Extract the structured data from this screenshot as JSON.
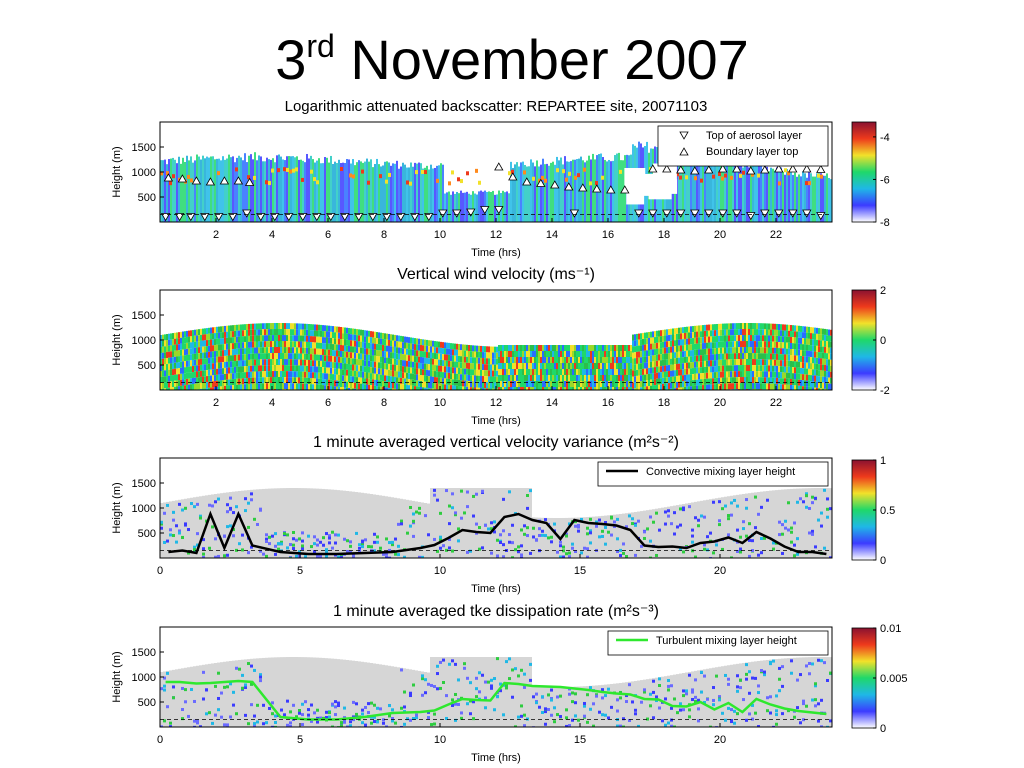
{
  "slide": {
    "title_number": "3",
    "title_suffix": "rd",
    "title_rest": "November 2007"
  },
  "chart_data": [
    {
      "type": "heatmap",
      "title": "Logarithmic attenuated backscatter: REPARTEE site, 20071103",
      "xlabel": "Time (hrs)",
      "ylabel": "Height (m)",
      "xlim": [
        0,
        24
      ],
      "ylim": [
        0,
        2000
      ],
      "x_ticks": [
        2,
        4,
        6,
        8,
        10,
        12,
        14,
        16,
        18,
        20,
        22
      ],
      "y_ticks": [
        500,
        1000,
        1500
      ],
      "colorbar": {
        "ticks": [
          -8,
          -6,
          -4
        ],
        "labels": [
          "-8",
          "-6",
          "-4"
        ],
        "range": [
          -8,
          -3.3
        ]
      },
      "legend": {
        "position": "top-right",
        "entries": [
          {
            "name": "Top of aerosol layer",
            "marker": "triangle-down"
          },
          {
            "name": "Boundary layer top",
            "marker": "triangle-up"
          }
        ]
      },
      "aerosol_layer_top": [
        {
          "x": 0.2,
          "y": 110
        },
        {
          "x": 0.7,
          "y": 110
        },
        {
          "x": 1.1,
          "y": 110
        },
        {
          "x": 1.6,
          "y": 110
        },
        {
          "x": 2.1,
          "y": 110
        },
        {
          "x": 2.6,
          "y": 110
        },
        {
          "x": 3.1,
          "y": 180
        },
        {
          "x": 3.6,
          "y": 110
        },
        {
          "x": 4.1,
          "y": 110
        },
        {
          "x": 4.6,
          "y": 110
        },
        {
          "x": 5.1,
          "y": 110
        },
        {
          "x": 5.6,
          "y": 110
        },
        {
          "x": 6.1,
          "y": 110
        },
        {
          "x": 6.6,
          "y": 110
        },
        {
          "x": 7.1,
          "y": 110
        },
        {
          "x": 7.6,
          "y": 110
        },
        {
          "x": 8.1,
          "y": 110
        },
        {
          "x": 8.6,
          "y": 110
        },
        {
          "x": 9.1,
          "y": 110
        },
        {
          "x": 9.6,
          "y": 110
        },
        {
          "x": 10.1,
          "y": 180
        },
        {
          "x": 10.6,
          "y": 180
        },
        {
          "x": 11.1,
          "y": 200
        },
        {
          "x": 11.6,
          "y": 250
        },
        {
          "x": 12.1,
          "y": 250
        },
        {
          "x": 14.8,
          "y": 180
        },
        {
          "x": 17.1,
          "y": 180
        },
        {
          "x": 17.6,
          "y": 180
        },
        {
          "x": 18.1,
          "y": 180
        },
        {
          "x": 18.6,
          "y": 180
        },
        {
          "x": 19.1,
          "y": 180
        },
        {
          "x": 19.6,
          "y": 180
        },
        {
          "x": 20.1,
          "y": 180
        },
        {
          "x": 20.6,
          "y": 180
        },
        {
          "x": 21.1,
          "y": 130
        },
        {
          "x": 21.6,
          "y": 180
        },
        {
          "x": 22.1,
          "y": 180
        },
        {
          "x": 22.6,
          "y": 180
        },
        {
          "x": 23.1,
          "y": 180
        },
        {
          "x": 23.6,
          "y": 130
        }
      ],
      "boundary_layer_top": [
        {
          "x": 0.3,
          "y": 880
        },
        {
          "x": 0.8,
          "y": 860
        },
        {
          "x": 1.3,
          "y": 820
        },
        {
          "x": 1.8,
          "y": 800
        },
        {
          "x": 2.3,
          "y": 820
        },
        {
          "x": 2.8,
          "y": 820
        },
        {
          "x": 3.2,
          "y": 790
        },
        {
          "x": 12.1,
          "y": 1100
        },
        {
          "x": 12.6,
          "y": 900
        },
        {
          "x": 13.1,
          "y": 800
        },
        {
          "x": 13.6,
          "y": 770
        },
        {
          "x": 14.1,
          "y": 740
        },
        {
          "x": 14.6,
          "y": 700
        },
        {
          "x": 15.1,
          "y": 680
        },
        {
          "x": 15.6,
          "y": 660
        },
        {
          "x": 16.1,
          "y": 640
        },
        {
          "x": 16.6,
          "y": 640
        },
        {
          "x": 17.6,
          "y": 1060
        },
        {
          "x": 18.1,
          "y": 1060
        },
        {
          "x": 18.6,
          "y": 1040
        },
        {
          "x": 19.1,
          "y": 1020
        },
        {
          "x": 19.6,
          "y": 1040
        },
        {
          "x": 20.1,
          "y": 1060
        },
        {
          "x": 20.6,
          "y": 1060
        },
        {
          "x": 21.1,
          "y": 1020
        },
        {
          "x": 21.6,
          "y": 1040
        },
        {
          "x": 22.1,
          "y": 1060
        },
        {
          "x": 22.6,
          "y": 1060
        },
        {
          "x": 23.1,
          "y": 1060
        },
        {
          "x": 23.6,
          "y": 1050
        }
      ],
      "dashed_line_height": 150
    },
    {
      "type": "heatmap",
      "title": "Vertical wind velocity (ms⁻¹)",
      "xlabel": "Time (hrs)",
      "ylabel": "Height (m)",
      "xlim": [
        0,
        24
      ],
      "ylim": [
        0,
        2000
      ],
      "x_ticks": [
        2,
        4,
        6,
        8,
        10,
        12,
        14,
        16,
        18,
        20,
        22
      ],
      "y_ticks": [
        500,
        1000,
        1500
      ],
      "colorbar": {
        "ticks": [
          -2,
          0,
          2
        ],
        "labels": [
          "-2",
          "0",
          "2"
        ],
        "range": [
          -2,
          2
        ]
      },
      "dashed_line_height": 150
    },
    {
      "type": "heatmap",
      "title": "1 minute averaged vertical velocity variance (m²s⁻²)",
      "xlabel": "Time (hrs)",
      "ylabel": "Height (m)",
      "xlim": [
        0,
        24
      ],
      "ylim": [
        0,
        2000
      ],
      "x_ticks": [
        0,
        5,
        10,
        15,
        20
      ],
      "y_ticks": [
        500,
        1000,
        1500
      ],
      "colorbar": {
        "ticks": [
          0,
          0.5,
          1
        ],
        "labels": [
          "0",
          "0.5",
          "1"
        ],
        "range": [
          0,
          1
        ]
      },
      "legend": {
        "position": "top-right",
        "entries": [
          {
            "name": "Convective mixing layer height",
            "color": "#000000"
          }
        ]
      },
      "series": [
        {
          "name": "Convective mixing layer height",
          "color": "#000000",
          "x": [
            0.3,
            0.8,
            1.3,
            1.8,
            2.3,
            2.8,
            3.3,
            4.3,
            5.3,
            6.3,
            7.3,
            8.3,
            9.3,
            9.8,
            10.3,
            10.8,
            11.3,
            11.8,
            12.3,
            12.8,
            13.3,
            13.8,
            14.3,
            14.8,
            15.3,
            15.8,
            16.3,
            16.8,
            17.3,
            17.8,
            18.3,
            18.8,
            19.3,
            19.8,
            20.3,
            20.8,
            21.3,
            21.8,
            22.3,
            22.8,
            23.3,
            23.8
          ],
          "y": [
            120,
            150,
            100,
            880,
            200,
            880,
            250,
            120,
            80,
            80,
            100,
            120,
            200,
            260,
            400,
            560,
            520,
            500,
            820,
            880,
            760,
            700,
            380,
            760,
            700,
            680,
            650,
            560,
            250,
            220,
            230,
            200,
            300,
            330,
            410,
            300,
            520,
            390,
            230,
            120,
            120,
            80
          ]
        }
      ],
      "dashed_line_height": 150
    },
    {
      "type": "heatmap",
      "title": "1 minute averaged tke dissipation rate (m²s⁻³)",
      "xlabel": "Time (hrs)",
      "ylabel": "Height (m)",
      "xlim": [
        0,
        24
      ],
      "ylim": [
        0,
        2000
      ],
      "x_ticks": [
        0,
        5,
        10,
        15,
        20
      ],
      "y_ticks": [
        500,
        1000,
        1500
      ],
      "colorbar": {
        "ticks": [
          0,
          0.005,
          0.01
        ],
        "labels": [
          "0",
          "0.005",
          "0.01"
        ],
        "range": [
          0,
          0.01
        ]
      },
      "legend": {
        "position": "top-right",
        "entries": [
          {
            "name": "Turbulent mixing layer height",
            "color": "#2ee82e"
          }
        ]
      },
      "series": [
        {
          "name": "Turbulent mixing layer height",
          "color": "#2ee82e",
          "x": [
            0.2,
            0.7,
            1.3,
            1.8,
            2.3,
            2.8,
            3.3,
            4.3,
            5.3,
            6.3,
            7.3,
            8.3,
            9.3,
            9.8,
            10.3,
            10.8,
            11.3,
            11.8,
            12.3,
            12.8,
            13.3,
            13.8,
            14.3,
            14.8,
            15.3,
            15.8,
            16.3,
            16.8,
            17.3,
            17.8,
            18.3,
            18.8,
            19.3,
            19.8,
            20.3,
            20.8,
            21.3,
            21.8,
            22.3,
            22.8,
            23.3,
            23.8
          ],
          "y": [
            900,
            900,
            870,
            880,
            900,
            920,
            900,
            200,
            150,
            150,
            200,
            280,
            300,
            330,
            450,
            560,
            540,
            530,
            880,
            860,
            820,
            810,
            800,
            770,
            740,
            700,
            670,
            650,
            560,
            550,
            420,
            410,
            500,
            350,
            480,
            300,
            560,
            450,
            370,
            320,
            290,
            260
          ]
        }
      ],
      "dashed_line_height": 150
    }
  ],
  "colors": {
    "colormap": [
      "#ffffff",
      "#3b3bff",
      "#1fb8e6",
      "#1fd86a",
      "#f2e12a",
      "#ee3a1c",
      "#8a1230"
    ],
    "axis": "#000000",
    "variance_background": "#d6d6d6"
  }
}
